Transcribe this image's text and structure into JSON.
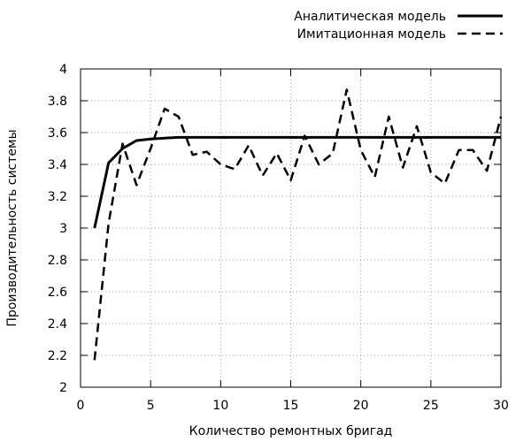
{
  "chart_data": {
    "type": "line",
    "xlabel": "Количество ремонтных бригад",
    "ylabel": "Производительность системы",
    "xlim": [
      0,
      30
    ],
    "ylim": [
      2,
      4
    ],
    "xticks": [
      0,
      5,
      10,
      15,
      20,
      25,
      30
    ],
    "yticks": [
      2,
      2.2,
      2.4,
      2.6,
      2.8,
      3,
      3.2,
      3.4,
      3.6,
      3.8,
      4
    ],
    "grid": true,
    "legend_position": "top-right",
    "series": [
      {
        "name": "Аналитическая модель",
        "style": "solid",
        "color": "#000000",
        "x": [
          1,
          2,
          3,
          4,
          5,
          6,
          7,
          8,
          9,
          10,
          11,
          12,
          13,
          14,
          15,
          16,
          17,
          18,
          19,
          20,
          21,
          22,
          23,
          24,
          25,
          26,
          27,
          28,
          29,
          30
        ],
        "y": [
          3.0,
          3.41,
          3.5,
          3.55,
          3.56,
          3.565,
          3.57,
          3.57,
          3.57,
          3.57,
          3.57,
          3.57,
          3.57,
          3.57,
          3.57,
          3.57,
          3.57,
          3.57,
          3.57,
          3.57,
          3.57,
          3.57,
          3.57,
          3.57,
          3.57,
          3.57,
          3.57,
          3.57,
          3.57,
          3.57
        ]
      },
      {
        "name": "Имитационная модель",
        "style": "dashed",
        "color": "#000000",
        "x": [
          1,
          2,
          3,
          4,
          5,
          6,
          7,
          8,
          9,
          10,
          11,
          12,
          13,
          14,
          15,
          16,
          17,
          18,
          19,
          20,
          21,
          22,
          23,
          24,
          25,
          26,
          27,
          28,
          29,
          30
        ],
        "y": [
          2.17,
          3.03,
          3.53,
          3.27,
          3.5,
          3.75,
          3.7,
          3.46,
          3.48,
          3.4,
          3.37,
          3.52,
          3.33,
          3.47,
          3.3,
          3.58,
          3.4,
          3.47,
          3.87,
          3.49,
          3.32,
          3.7,
          3.38,
          3.64,
          3.35,
          3.28,
          3.49,
          3.49,
          3.36,
          3.7
        ]
      }
    ]
  }
}
